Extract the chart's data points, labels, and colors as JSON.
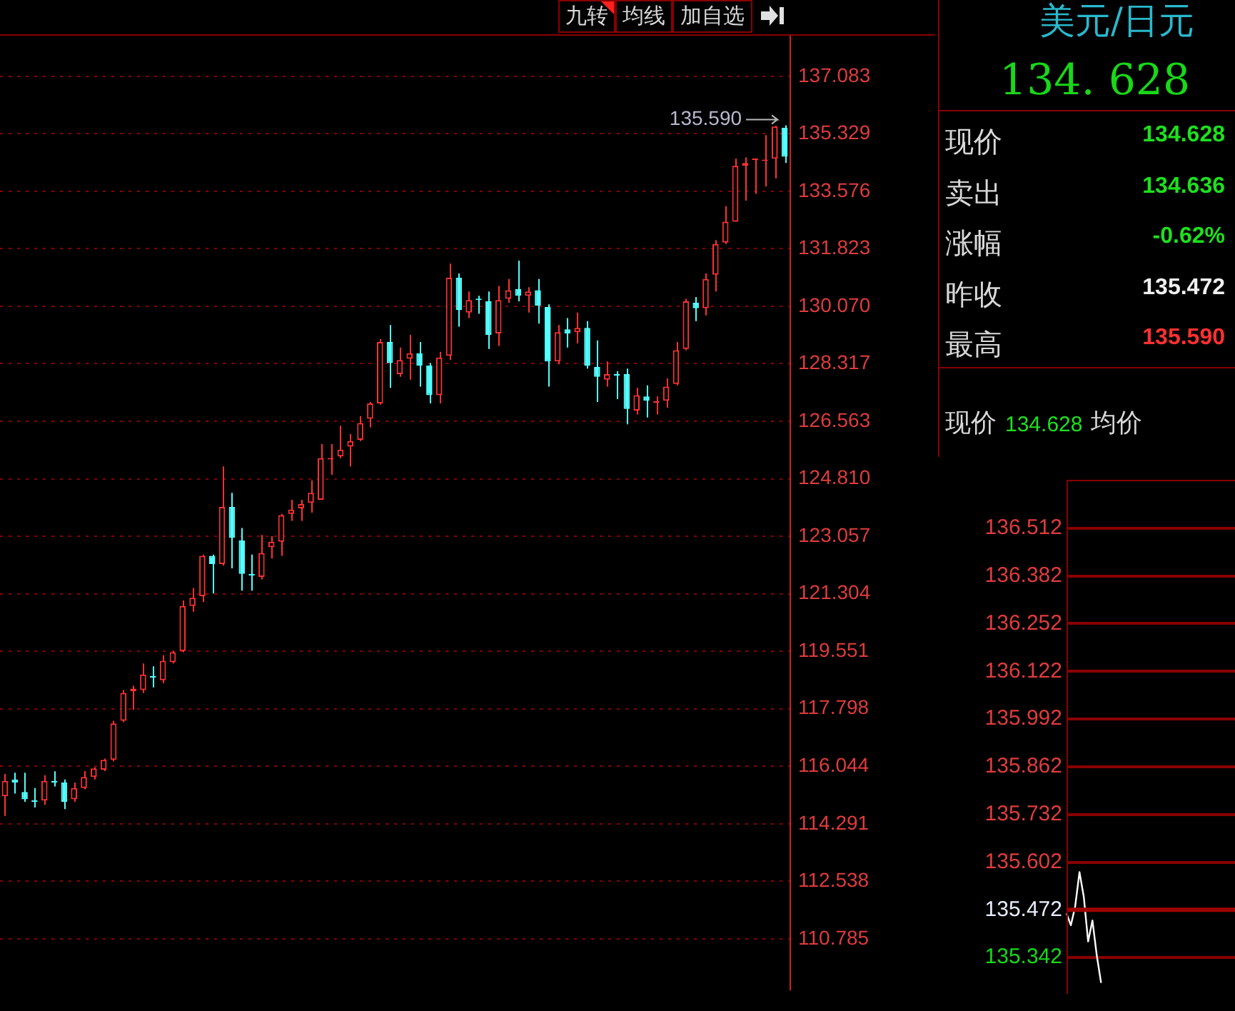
{
  "chart_data": [
    {
      "type": "candlestick",
      "categories": [
        null,
        null,
        null,
        null,
        null,
        null,
        null,
        null,
        null,
        null,
        null,
        null,
        null,
        null,
        null,
        null,
        null,
        null,
        null,
        null,
        null,
        null,
        null,
        null,
        null,
        null,
        null,
        null,
        null,
        null,
        null,
        null,
        null,
        null,
        null,
        null,
        null,
        null,
        null,
        null,
        null,
        null,
        null,
        null,
        null,
        null,
        null,
        null,
        null,
        null,
        null,
        null,
        null,
        null,
        null,
        null,
        null,
        null,
        null,
        null,
        null,
        null,
        null,
        null,
        null,
        null,
        null,
        null,
        null,
        null,
        null,
        null,
        null,
        null,
        null,
        null,
        null,
        null,
        null,
        null
      ],
      "ohlc": [
        [
          115.13,
          115.81,
          114.53,
          115.6
        ],
        [
          115.64,
          115.85,
          115.21,
          115.55
        ],
        [
          115.26,
          115.85,
          114.96,
          115.04
        ],
        [
          115.0,
          115.38,
          114.79,
          114.96
        ],
        [
          115.0,
          115.77,
          114.87,
          115.6
        ],
        [
          115.6,
          115.89,
          115.43,
          115.55
        ],
        [
          115.55,
          115.64,
          114.74,
          114.96
        ],
        [
          115.04,
          115.55,
          114.96,
          115.38
        ],
        [
          115.38,
          115.9,
          115.34,
          115.72
        ],
        [
          115.72,
          116.02,
          115.64,
          115.98
        ],
        [
          115.94,
          116.28,
          115.9,
          116.24
        ],
        [
          116.24,
          117.43,
          116.19,
          117.35
        ],
        [
          117.43,
          118.37,
          117.39,
          118.28
        ],
        [
          118.33,
          118.5,
          117.77,
          118.41
        ],
        [
          118.37,
          119.18,
          118.28,
          118.84
        ],
        [
          118.8,
          119.09,
          118.45,
          118.75
        ],
        [
          118.67,
          119.43,
          118.58,
          119.26
        ],
        [
          119.22,
          119.56,
          119.18,
          119.52
        ],
        [
          119.56,
          121.1,
          119.52,
          120.93
        ],
        [
          120.93,
          121.48,
          120.76,
          121.18
        ],
        [
          121.23,
          122.5,
          121.05,
          122.46
        ],
        [
          122.46,
          122.5,
          121.31,
          122.21
        ],
        [
          122.21,
          125.19,
          122.16,
          123.95
        ],
        [
          123.95,
          124.38,
          122.08,
          123.01
        ],
        [
          122.93,
          123.31,
          121.4,
          121.91
        ],
        [
          121.91,
          122.5,
          121.4,
          121.86
        ],
        [
          121.82,
          123.1,
          121.74,
          122.55
        ],
        [
          122.72,
          123.06,
          122.38,
          122.89
        ],
        [
          122.89,
          123.74,
          122.46,
          123.7
        ],
        [
          123.74,
          124.17,
          123.53,
          123.87
        ],
        [
          123.91,
          124.17,
          123.53,
          124.04
        ],
        [
          124.08,
          124.76,
          123.78,
          124.38
        ],
        [
          124.17,
          125.87,
          124.17,
          125.44
        ],
        [
          125.4,
          125.87,
          124.93,
          125.44
        ],
        [
          125.49,
          126.43,
          125.44,
          125.7
        ],
        [
          125.79,
          126.17,
          125.19,
          125.96
        ],
        [
          126.0,
          126.72,
          125.96,
          126.51
        ],
        [
          126.64,
          127.15,
          126.38,
          127.11
        ],
        [
          127.11,
          129.07,
          127.07,
          128.98
        ],
        [
          128.98,
          129.5,
          127.58,
          128.34
        ],
        [
          128.0,
          128.81,
          127.92,
          128.43
        ],
        [
          128.47,
          129.2,
          127.83,
          128.64
        ],
        [
          128.64,
          128.98,
          127.62,
          128.26
        ],
        [
          128.26,
          128.34,
          127.11,
          127.36
        ],
        [
          127.36,
          128.68,
          127.11,
          128.51
        ],
        [
          128.56,
          131.37,
          128.43,
          130.94
        ],
        [
          130.94,
          131.07,
          129.45,
          129.96
        ],
        [
          129.88,
          130.52,
          129.71,
          130.26
        ],
        [
          130.3,
          130.39,
          129.84,
          130.26
        ],
        [
          130.22,
          130.52,
          128.77,
          129.2
        ],
        [
          129.24,
          130.69,
          128.86,
          130.26
        ],
        [
          130.3,
          130.9,
          130.18,
          130.56
        ],
        [
          130.6,
          131.46,
          130.22,
          130.39
        ],
        [
          130.39,
          130.65,
          129.88,
          130.52
        ],
        [
          130.56,
          130.9,
          129.54,
          130.09
        ],
        [
          130.05,
          130.13,
          127.62,
          128.39
        ],
        [
          128.39,
          129.5,
          128.3,
          129.28
        ],
        [
          129.37,
          129.71,
          128.81,
          129.24
        ],
        [
          129.28,
          129.88,
          128.94,
          129.41
        ],
        [
          129.41,
          129.62,
          128.17,
          128.26
        ],
        [
          128.22,
          129.03,
          127.15,
          127.92
        ],
        [
          127.83,
          128.39,
          127.62,
          128.0
        ],
        [
          128.0,
          128.09,
          127.24,
          127.96
        ],
        [
          128.0,
          128.17,
          126.47,
          126.94
        ],
        [
          126.89,
          127.58,
          126.77,
          127.36
        ],
        [
          127.32,
          127.66,
          126.68,
          127.19
        ],
        [
          127.13,
          127.32,
          126.77,
          127.15
        ],
        [
          127.19,
          127.87,
          126.98,
          127.62
        ],
        [
          127.7,
          128.98,
          127.66,
          128.73
        ],
        [
          128.77,
          130.3,
          128.73,
          130.22
        ],
        [
          130.18,
          130.35,
          129.62,
          130.01
        ],
        [
          130.01,
          131.07,
          129.79,
          130.9
        ],
        [
          131.03,
          132.09,
          130.52,
          131.97
        ],
        [
          132.01,
          133.12,
          131.97,
          132.65
        ],
        [
          132.65,
          134.57,
          132.65,
          134.35
        ],
        [
          134.35,
          134.61,
          133.29,
          134.44
        ],
        [
          134.53,
          134.57,
          133.5,
          134.57
        ],
        [
          134.5,
          135.29,
          133.72,
          134.53
        ],
        [
          134.57,
          135.57,
          133.97,
          135.55
        ],
        [
          135.51,
          135.59,
          134.44,
          134.628
        ]
      ],
      "ylim": [
        109.21,
        138.32
      ],
      "yticks": [
        110.785,
        112.538,
        114.291,
        116.044,
        117.798,
        119.551,
        121.304,
        123.057,
        {
          "value": 124.81,
          "label": "124.810"
        },
        126.563,
        128.317,
        {
          "value": 130.07,
          "label": "130.070"
        },
        131.823,
        133.576,
        135.329,
        137.083
      ],
      "grid": "y",
      "tick_labels": "y",
      "annotations": [
        "九转",
        "均线",
        "加自选",
        "135.590"
      ]
    },
    {
      "type": "other",
      "title": "美元/日元",
      "annotations": [
        "134. 628",
        "现价",
        "134.628",
        "卖出",
        "134.636",
        "涨幅",
        "-0.62%",
        "昨收",
        "135.472",
        "最高",
        "135.590",
        "现价",
        "134.628",
        "均价"
      ]
    },
    {
      "type": "line",
      "categories": [
        null,
        null,
        null,
        null,
        null,
        null,
        null,
        null,
        null,
        null,
        null,
        null,
        null,
        null,
        null,
        null,
        null,
        null,
        null,
        null,
        null,
        null,
        null,
        null,
        null,
        null,
        null,
        null,
        null,
        null,
        null,
        null,
        null,
        null,
        null,
        null,
        null,
        null,
        null,
        null
      ],
      "series": [
        {
          "color": "#ffffff",
          "values": [
            135.462,
            135.43,
            135.481,
            135.575,
            135.507,
            135.386,
            135.443,
            135.348,
            135.273,
            null,
            null,
            null,
            null,
            null,
            null,
            null,
            null,
            null,
            null,
            null,
            null,
            null,
            null,
            null,
            null,
            null,
            null,
            null,
            null,
            null,
            null,
            null,
            null,
            null,
            null,
            null,
            null,
            null,
            null,
            null
          ]
        }
      ],
      "ylim": [
        135.243,
        136.644
      ],
      "yticks": [
        135.342,
        135.472,
        135.602,
        135.732,
        135.862,
        135.992,
        136.122,
        136.252,
        136.382,
        136.512
      ],
      "grid": "y",
      "tick_labels": "y",
      "ref_lines": [
        {
          "axis": "y",
          "value": 135.472,
          "color": "#a00000"
        }
      ]
    }
  ]
}
